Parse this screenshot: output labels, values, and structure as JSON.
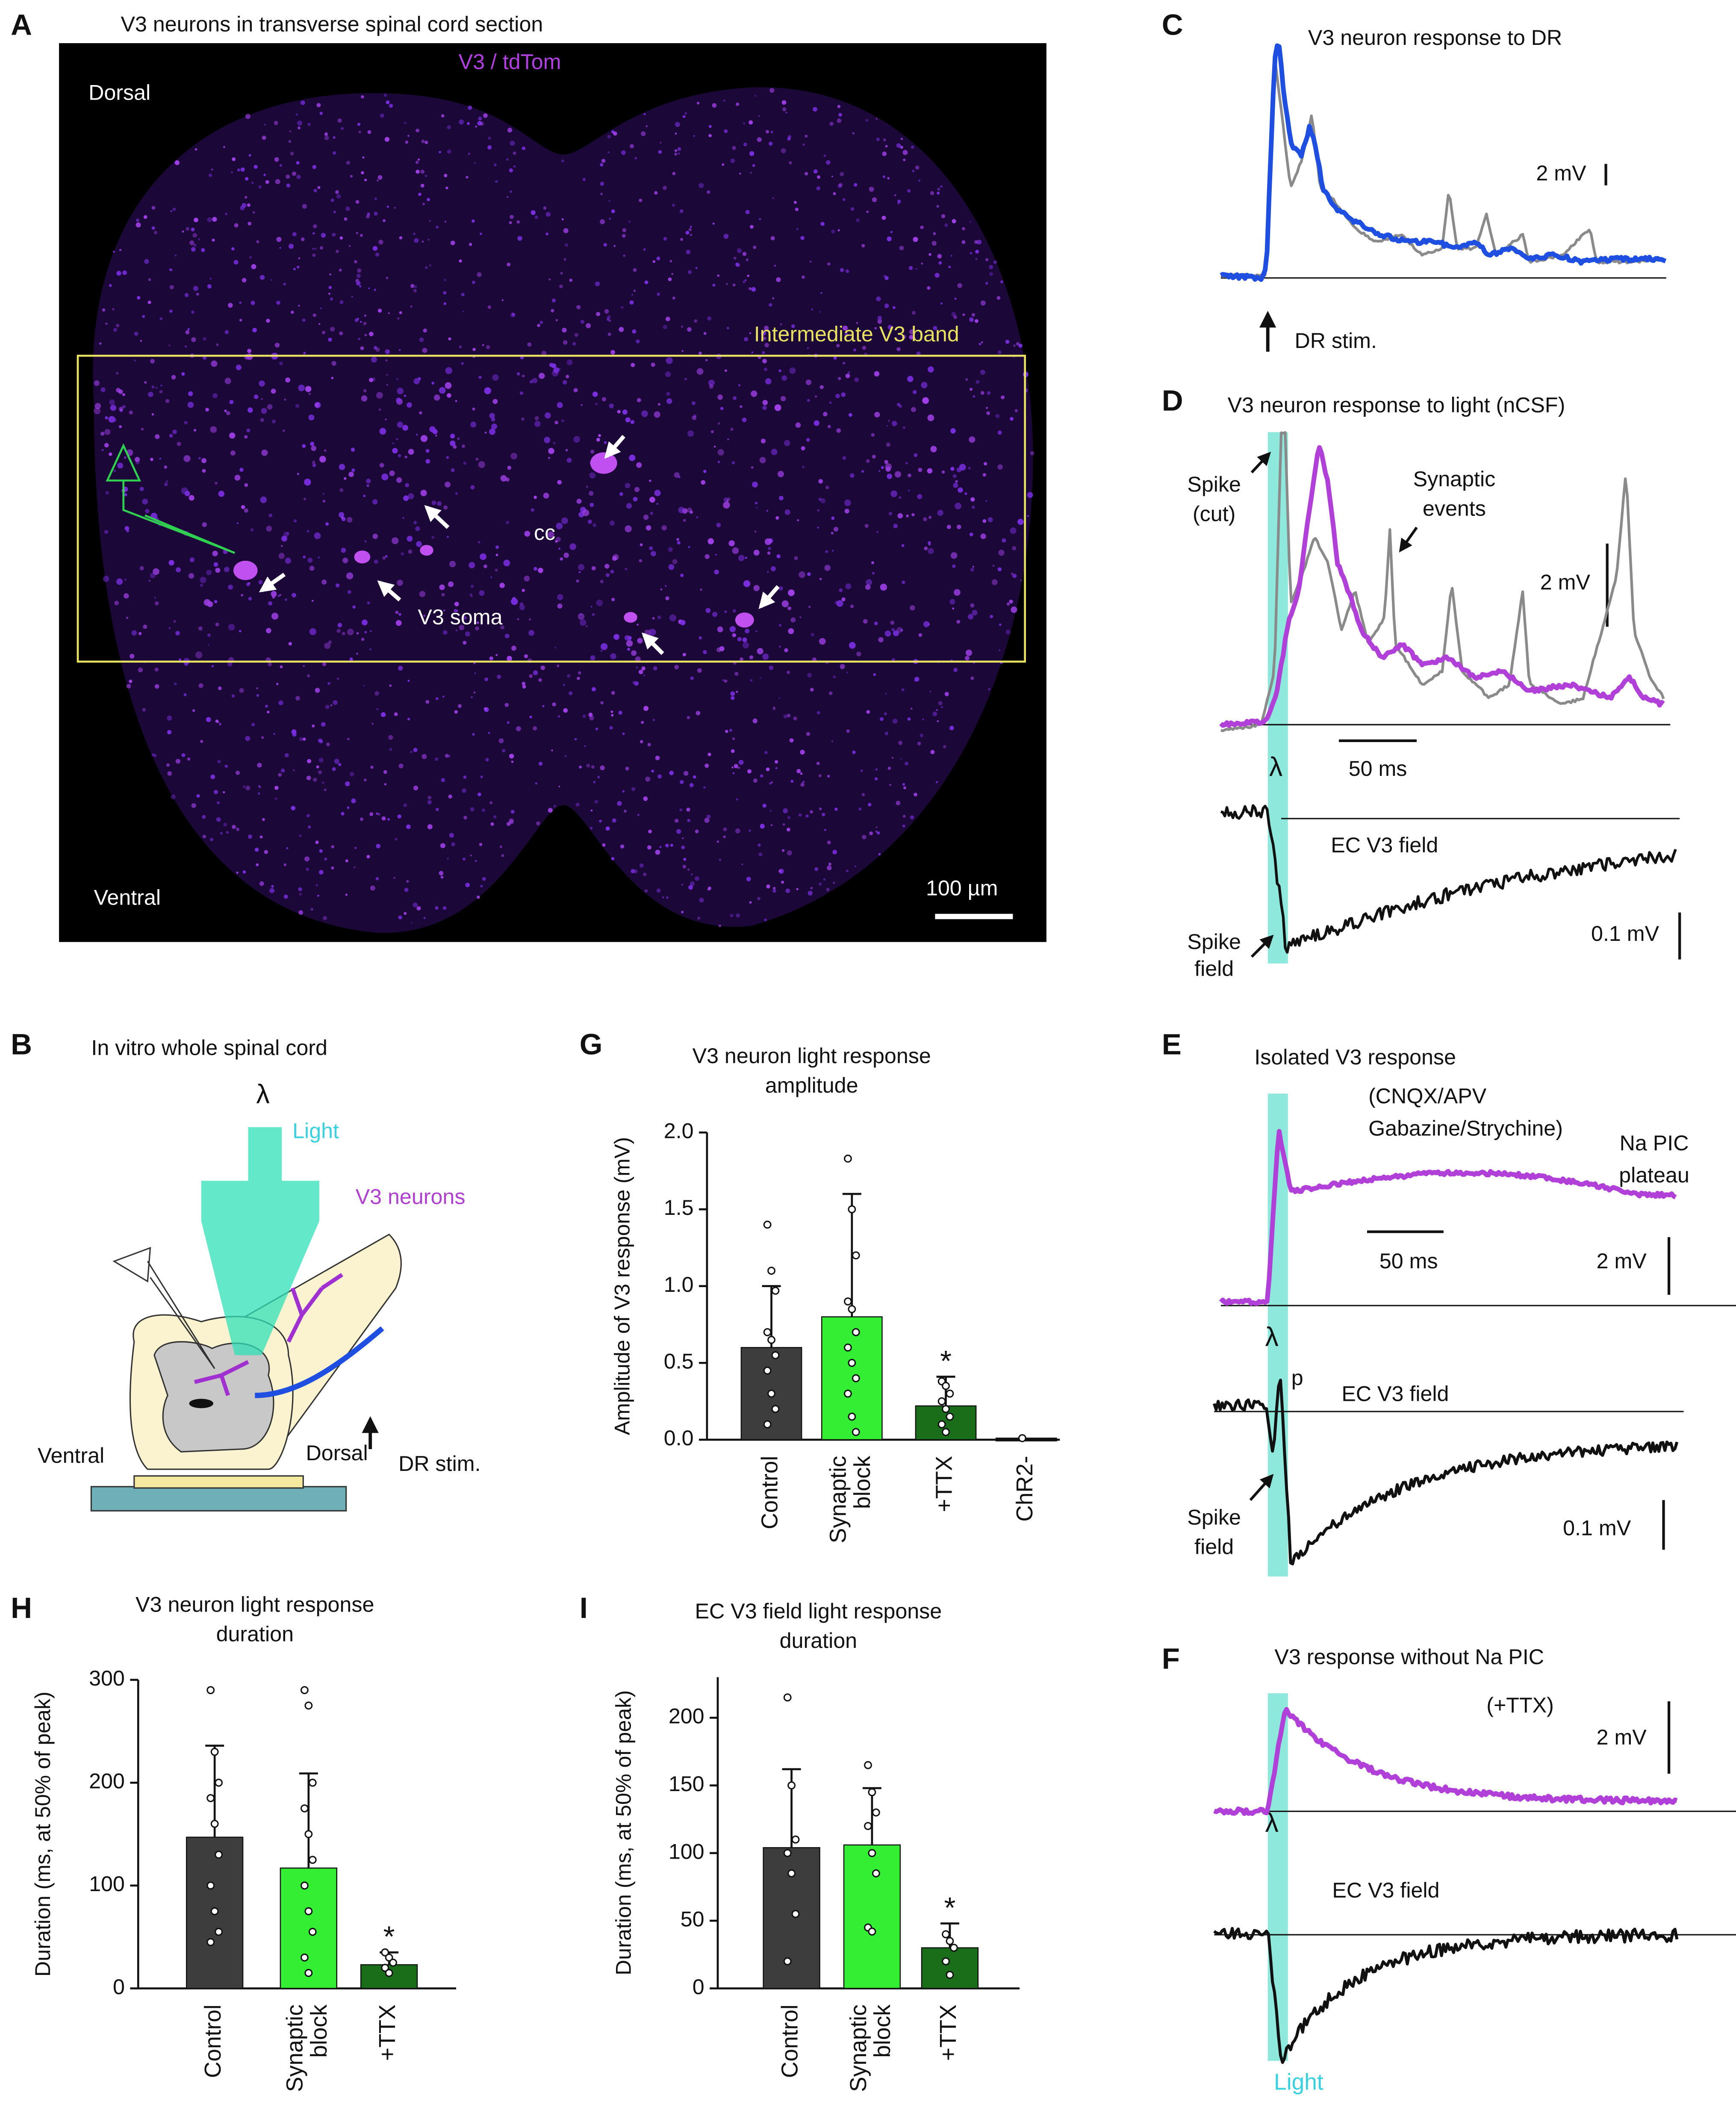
{
  "panels": {
    "A": {
      "label": "A",
      "title": "V3 neurons in transverse spinal cord section",
      "stain": "V3 / tdTom",
      "dorsal": "Dorsal",
      "band": "Intermediate V3 band",
      "cc": "cc",
      "soma": "V3 soma",
      "ventral": "Ventral",
      "scale": "100 µm"
    },
    "B": {
      "label": "B",
      "title": "In vitro whole spinal cord",
      "lambda": "λ",
      "light": "Light",
      "neurons": "V3 neurons",
      "stim": "DR stim.",
      "ventral": "Ventral",
      "dorsal": "Dorsal"
    },
    "C": {
      "label": "C",
      "title": "V3 neuron response to DR",
      "scale": "2 mV",
      "stim": "DR stim."
    },
    "D": {
      "label": "D",
      "title": "V3 neuron response to light (nCSF)",
      "spike_cut": [
        "Spike",
        "(cut)"
      ],
      "synaptic": [
        "Synaptic",
        "events"
      ],
      "scale_mv": "2 mV",
      "lambda": "λ",
      "scale_ms": "50 ms",
      "field": "EC V3 field",
      "spike_field": [
        "Spike",
        "field"
      ],
      "scale_field": "0.1 mV"
    },
    "E": {
      "label": "E",
      "title": "Isolated V3 response",
      "drugs": [
        "(CNQX/APV",
        "Gabazine/Strychine)"
      ],
      "plateau": [
        "Na PIC",
        "plateau"
      ],
      "scale_ms": "50 ms",
      "scale_mv": "2 mV",
      "lambda": "λ",
      "peak": "p",
      "field": "EC V3 field",
      "spike_field": [
        "Spike",
        "field"
      ],
      "scale_field": "0.1 mV"
    },
    "F": {
      "label": "F",
      "title": "V3 response without  Na PIC",
      "ttx": "(+TTX)",
      "scale_mv": "2 mV",
      "lambda": "λ",
      "field": "EC V3 field",
      "light": "Light"
    }
  },
  "chart_data": [
    {
      "type": "bar",
      "label": "G",
      "title": [
        "V3 neuron light response",
        "amplitude"
      ],
      "ylabel": "Amplitude of V3 response (mV)",
      "categories": [
        [
          "Control"
        ],
        [
          "Synaptic",
          "block"
        ],
        [
          "+TTX"
        ],
        [
          "ChR2-"
        ]
      ],
      "values": [
        0.6,
        0.8,
        0.22,
        0.01
      ],
      "errors": [
        0.4,
        0.8,
        0.19,
        0
      ],
      "colors": [
        "#3d3d3d",
        "#33ee33",
        "#1a6e1a",
        "#111111"
      ],
      "points": [
        [
          1.4,
          1.1,
          0.97,
          0.7,
          0.65,
          0.55,
          0.45,
          0.3,
          0.2,
          0.1
        ],
        [
          1.83,
          1.5,
          1.2,
          0.9,
          0.85,
          0.7,
          0.6,
          0.5,
          0.4,
          0.3,
          0.15,
          0.05
        ],
        [
          0.38,
          0.35,
          0.3,
          0.25,
          0.2,
          0.15,
          0.1,
          0.05
        ],
        [
          0.01
        ]
      ],
      "annotations": [
        {
          "category": 2,
          "text": "*"
        }
      ],
      "ylim": [
        0,
        2
      ],
      "yticks": [
        {
          "value": 0,
          "label": "0.0"
        },
        0.5,
        {
          "value": 1,
          "label": "1.0"
        },
        1.5,
        {
          "value": 2,
          "label": "2.0"
        }
      ]
    },
    {
      "type": "bar",
      "label": "H",
      "title": [
        "V3 neuron light response",
        "duration"
      ],
      "ylabel": "Duration (ms, at 50% of peak)",
      "categories": [
        [
          "Control"
        ],
        [
          "Synaptic",
          "block"
        ],
        [
          "+TTX"
        ]
      ],
      "values": [
        147,
        117,
        23
      ],
      "errors": [
        89,
        92,
        12
      ],
      "colors": [
        "#3d3d3d",
        "#33ee33",
        "#1a6e1a"
      ],
      "points": [
        [
          290,
          230,
          200,
          185,
          160,
          130,
          100,
          75,
          55,
          45
        ],
        [
          290,
          275,
          200,
          175,
          150,
          125,
          100,
          75,
          55,
          30,
          15
        ],
        [
          35,
          30,
          25,
          20,
          15
        ]
      ],
      "annotations": [
        {
          "category": 2,
          "text": "*"
        }
      ],
      "ylim": [
        0,
        300
      ],
      "yticks": [
        0,
        100,
        200,
        300
      ]
    },
    {
      "type": "bar",
      "label": "I",
      "title": [
        "EC V3 field light response",
        "duration"
      ],
      "ylabel": "Duration (ms, at 50% of peak)",
      "categories": [
        [
          "Control"
        ],
        [
          "Synaptic",
          "block"
        ],
        [
          "+TTX"
        ]
      ],
      "values": [
        104,
        106,
        30
      ],
      "errors": [
        58,
        42,
        18
      ],
      "colors": [
        "#3d3d3d",
        "#33ee33",
        "#1a6e1a"
      ],
      "points": [
        [
          215,
          150,
          110,
          100,
          85,
          55,
          20
        ],
        [
          165,
          145,
          130,
          120,
          100,
          85,
          45,
          42
        ],
        [
          40,
          35,
          30,
          20,
          10
        ]
      ],
      "annotations": [
        {
          "category": 2,
          "text": "*"
        }
      ],
      "ylim": [
        0,
        230
      ],
      "yticks": [
        0,
        50,
        100,
        150,
        200
      ]
    }
  ]
}
